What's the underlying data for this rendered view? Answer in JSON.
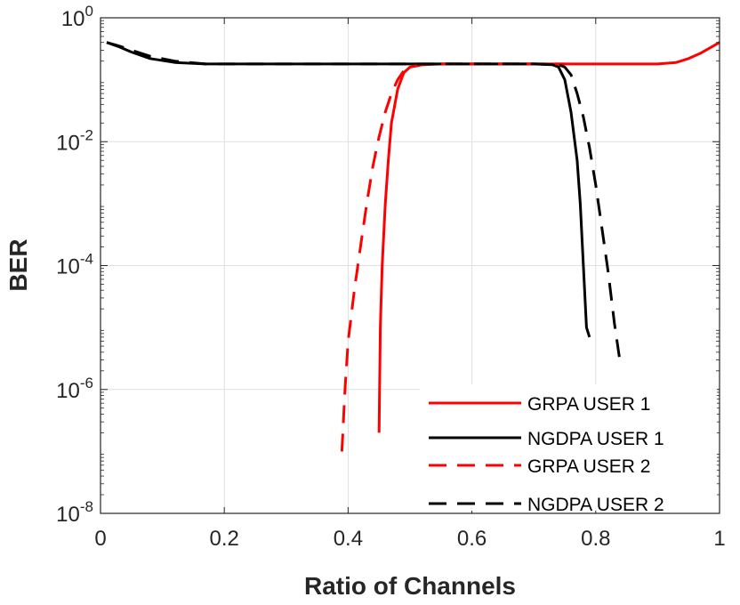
{
  "chart_data": {
    "type": "line",
    "title": "",
    "xlabel": "Ratio of Channels",
    "ylabel": "BER",
    "xlim": [
      0,
      1
    ],
    "ylim": [
      1e-08,
      1
    ],
    "yscale": "log",
    "grid": true,
    "legend_position": "bottom-right",
    "x_ticks": [
      0,
      0.2,
      0.4,
      0.6,
      0.8,
      1
    ],
    "x_tick_labels": [
      "0",
      "0.2",
      "0.4",
      "0.6",
      "0.8",
      "1"
    ],
    "y_ticks": [
      1e-08,
      1e-06,
      0.0001,
      0.01,
      1
    ],
    "y_tick_labels": [
      {
        "base": "10",
        "exp": "-8"
      },
      {
        "base": "10",
        "exp": "-6"
      },
      {
        "base": "10",
        "exp": "-4"
      },
      {
        "base": "10",
        "exp": "-2"
      },
      {
        "base": "10",
        "exp": "0"
      }
    ],
    "series": [
      {
        "name": "GRPA USER 1",
        "color": "#ff0000",
        "dash": "solid",
        "points": [
          [
            0.45,
            2e-07
          ],
          [
            0.452,
            1e-05
          ],
          [
            0.455,
            0.0001
          ],
          [
            0.46,
            0.001
          ],
          [
            0.465,
            0.005
          ],
          [
            0.47,
            0.02
          ],
          [
            0.48,
            0.07
          ],
          [
            0.49,
            0.13
          ],
          [
            0.5,
            0.16
          ],
          [
            0.52,
            0.175
          ],
          [
            0.55,
            0.18
          ],
          [
            0.7,
            0.18
          ],
          [
            0.8,
            0.18
          ],
          [
            0.9,
            0.18
          ],
          [
            0.93,
            0.19
          ],
          [
            0.95,
            0.22
          ],
          [
            0.97,
            0.27
          ],
          [
            0.99,
            0.35
          ],
          [
            1.0,
            0.4
          ]
        ]
      },
      {
        "name": "NGDPA USER 1",
        "color": "#000000",
        "dash": "solid",
        "points": [
          [
            0.01,
            0.4
          ],
          [
            0.03,
            0.34
          ],
          [
            0.05,
            0.28
          ],
          [
            0.08,
            0.22
          ],
          [
            0.12,
            0.19
          ],
          [
            0.17,
            0.18
          ],
          [
            0.25,
            0.18
          ],
          [
            0.4,
            0.18
          ],
          [
            0.55,
            0.18
          ],
          [
            0.7,
            0.18
          ],
          [
            0.73,
            0.175
          ],
          [
            0.74,
            0.16
          ],
          [
            0.75,
            0.1
          ],
          [
            0.76,
            0.03
          ],
          [
            0.77,
            0.005
          ],
          [
            0.775,
            0.001
          ],
          [
            0.78,
            0.0001
          ],
          [
            0.785,
            1e-05
          ],
          [
            0.79,
            7e-06
          ]
        ]
      },
      {
        "name": "GRPA USER 2",
        "color": "#ff0000",
        "dash": "dashed",
        "points": [
          [
            0.39,
            1e-07
          ],
          [
            0.395,
            1e-06
          ],
          [
            0.4,
            6e-06
          ],
          [
            0.41,
            4e-05
          ],
          [
            0.42,
            0.0002
          ],
          [
            0.43,
            0.001
          ],
          [
            0.44,
            0.004
          ],
          [
            0.45,
            0.012
          ],
          [
            0.46,
            0.03
          ],
          [
            0.47,
            0.06
          ],
          [
            0.48,
            0.1
          ],
          [
            0.49,
            0.14
          ],
          [
            0.5,
            0.16
          ],
          [
            0.52,
            0.175
          ],
          [
            0.55,
            0.18
          ],
          [
            0.65,
            0.18
          ],
          [
            0.7,
            0.18
          ],
          [
            0.75,
            0.18
          ]
        ]
      },
      {
        "name": "NGDPA USER 2",
        "color": "#000000",
        "dash": "dashed",
        "points": [
          [
            0.01,
            0.4
          ],
          [
            0.03,
            0.35
          ],
          [
            0.05,
            0.3
          ],
          [
            0.08,
            0.24
          ],
          [
            0.12,
            0.2
          ],
          [
            0.17,
            0.18
          ],
          [
            0.25,
            0.18
          ],
          [
            0.4,
            0.18
          ],
          [
            0.55,
            0.18
          ],
          [
            0.7,
            0.18
          ],
          [
            0.74,
            0.175
          ],
          [
            0.75,
            0.16
          ],
          [
            0.76,
            0.12
          ],
          [
            0.77,
            0.06
          ],
          [
            0.78,
            0.025
          ],
          [
            0.79,
            0.008
          ],
          [
            0.8,
            0.002
          ],
          [
            0.81,
            0.0004
          ],
          [
            0.82,
            8e-05
          ],
          [
            0.83,
            1.2e-05
          ],
          [
            0.84,
            2.5e-06
          ]
        ]
      }
    ]
  }
}
